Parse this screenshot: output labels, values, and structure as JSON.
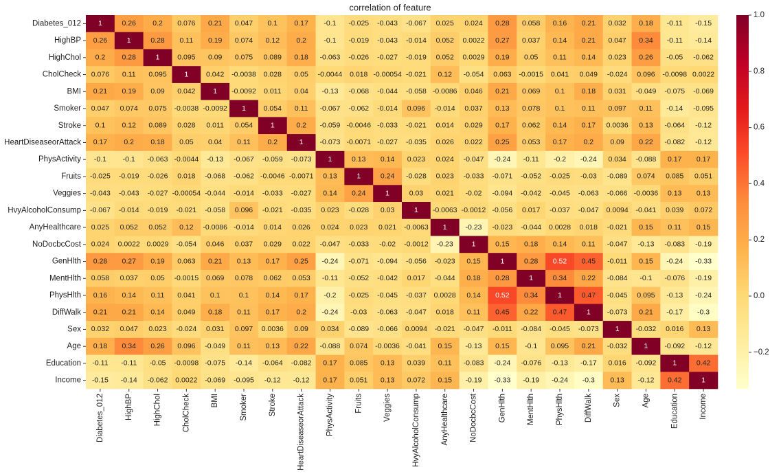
{
  "chart_data": {
    "type": "heatmap",
    "title": "correlation of feature",
    "x_categories": [
      "Diabetes_012",
      "HighBP",
      "HighChol",
      "CholCheck",
      "BMI",
      "Smoker",
      "Stroke",
      "HeartDiseaseorAttack",
      "PhysActivity",
      "Fruits",
      "Veggies",
      "HvyAlcoholConsump",
      "AnyHealthcare",
      "NoDocbcCost",
      "GenHlth",
      "MentHlth",
      "PhysHlth",
      "DiffWalk",
      "Sex",
      "Age",
      "Education",
      "Income"
    ],
    "y_categories": [
      "Diabetes_012",
      "HighBP",
      "HighChol",
      "CholCheck",
      "BMI",
      "Smoker",
      "Stroke",
      "HeartDiseaseorAttack",
      "PhysActivity",
      "Fruits",
      "Veggies",
      "HvyAlcoholConsump",
      "AnyHealthcare",
      "NoDocbcCost",
      "GenHlth",
      "MentHlth",
      "PhysHlth",
      "DiffWalk",
      "Sex",
      "Age",
      "Education",
      "Income"
    ],
    "values": [
      [
        1,
        0.26,
        0.2,
        0.076,
        0.21,
        0.047,
        0.1,
        0.17,
        -0.1,
        -0.025,
        -0.043,
        -0.067,
        0.025,
        0.024,
        0.28,
        0.058,
        0.16,
        0.21,
        0.032,
        0.18,
        -0.11,
        -0.15
      ],
      [
        0.26,
        1,
        0.28,
        0.11,
        0.19,
        0.074,
        0.12,
        0.2,
        -0.1,
        -0.019,
        -0.043,
        -0.014,
        0.052,
        0.0022,
        0.27,
        0.037,
        0.14,
        0.21,
        0.047,
        0.34,
        -0.11,
        -0.14
      ],
      [
        0.2,
        0.28,
        1,
        0.095,
        0.09,
        0.075,
        0.089,
        0.18,
        -0.063,
        -0.026,
        -0.027,
        -0.019,
        0.052,
        0.0029,
        0.19,
        0.05,
        0.11,
        0.14,
        0.023,
        0.26,
        -0.05,
        -0.062
      ],
      [
        0.076,
        0.11,
        0.095,
        1,
        0.042,
        -0.0038,
        0.028,
        0.05,
        -0.0044,
        0.018,
        -0.00054,
        -0.021,
        0.12,
        -0.054,
        0.063,
        -0.0015,
        0.041,
        0.049,
        -0.024,
        0.096,
        -0.0098,
        0.0022
      ],
      [
        0.21,
        0.19,
        0.09,
        0.042,
        1,
        -0.0092,
        0.011,
        0.04,
        -0.13,
        -0.068,
        -0.044,
        -0.058,
        -0.0086,
        0.046,
        0.21,
        0.069,
        0.1,
        0.18,
        0.031,
        -0.049,
        -0.075,
        -0.069
      ],
      [
        0.047,
        0.074,
        0.075,
        -0.0038,
        -0.0092,
        1,
        0.054,
        0.11,
        -0.067,
        -0.062,
        -0.014,
        0.096,
        -0.014,
        0.037,
        0.13,
        0.078,
        0.1,
        0.11,
        0.097,
        0.11,
        -0.14,
        -0.095
      ],
      [
        0.1,
        0.12,
        0.089,
        0.028,
        0.011,
        0.054,
        1,
        0.2,
        -0.059,
        -0.0046,
        -0.033,
        -0.021,
        0.014,
        0.029,
        0.17,
        0.062,
        0.14,
        0.17,
        0.0036,
        0.13,
        -0.064,
        -0.12
      ],
      [
        0.17,
        0.2,
        0.18,
        0.05,
        0.04,
        0.11,
        0.2,
        1,
        -0.073,
        -0.0071,
        -0.027,
        -0.035,
        0.026,
        0.022,
        0.25,
        0.053,
        0.17,
        0.2,
        0.09,
        0.22,
        -0.082,
        -0.12
      ],
      [
        -0.1,
        -0.1,
        -0.063,
        -0.0044,
        -0.13,
        -0.067,
        -0.059,
        -0.073,
        1,
        0.13,
        0.14,
        0.023,
        0.024,
        -0.047,
        -0.24,
        -0.11,
        -0.2,
        -0.24,
        0.034,
        -0.088,
        0.17,
        0.17
      ],
      [
        -0.025,
        -0.019,
        -0.026,
        0.018,
        -0.068,
        -0.062,
        -0.0046,
        -0.0071,
        0.13,
        1,
        0.24,
        -0.028,
        0.023,
        -0.033,
        -0.071,
        -0.052,
        -0.025,
        -0.03,
        -0.089,
        0.074,
        0.085,
        0.051
      ],
      [
        -0.043,
        -0.043,
        -0.027,
        -0.00054,
        -0.044,
        -0.014,
        -0.033,
        -0.027,
        0.14,
        0.24,
        1,
        0.03,
        0.021,
        -0.02,
        -0.094,
        -0.042,
        -0.045,
        -0.063,
        -0.066,
        -0.0036,
        0.13,
        0.13
      ],
      [
        -0.067,
        -0.014,
        -0.019,
        -0.021,
        -0.058,
        0.096,
        -0.021,
        -0.035,
        0.023,
        -0.028,
        0.03,
        1,
        -0.0063,
        -0.0012,
        -0.056,
        0.017,
        -0.037,
        -0.047,
        0.0094,
        -0.041,
        0.039,
        0.072
      ],
      [
        0.025,
        0.052,
        0.052,
        0.12,
        -0.0086,
        -0.014,
        0.014,
        0.026,
        0.024,
        0.023,
        0.021,
        -0.0063,
        1,
        -0.23,
        -0.023,
        -0.044,
        0.0028,
        0.018,
        -0.021,
        0.15,
        0.11,
        0.15
      ],
      [
        0.024,
        0.0022,
        0.0029,
        -0.054,
        0.046,
        0.037,
        0.029,
        0.022,
        -0.047,
        -0.033,
        -0.02,
        -0.0012,
        -0.23,
        1,
        0.15,
        0.18,
        0.14,
        0.11,
        -0.047,
        -0.13,
        -0.083,
        -0.19
      ],
      [
        0.28,
        0.27,
        0.19,
        0.063,
        0.21,
        0.13,
        0.17,
        0.25,
        -0.24,
        -0.071,
        -0.094,
        -0.056,
        -0.023,
        0.15,
        1,
        0.28,
        0.52,
        0.45,
        -0.011,
        0.15,
        -0.24,
        -0.33
      ],
      [
        0.058,
        0.037,
        0.05,
        -0.0015,
        0.069,
        0.078,
        0.062,
        0.053,
        -0.11,
        -0.052,
        -0.042,
        0.017,
        -0.044,
        0.18,
        0.28,
        1,
        0.34,
        0.22,
        -0.084,
        -0.1,
        -0.076,
        -0.19
      ],
      [
        0.16,
        0.14,
        0.11,
        0.041,
        0.1,
        0.1,
        0.14,
        0.17,
        -0.2,
        -0.025,
        -0.045,
        -0.037,
        0.0028,
        0.14,
        0.52,
        0.34,
        1,
        0.47,
        -0.045,
        0.095,
        -0.13,
        -0.24
      ],
      [
        0.21,
        0.21,
        0.14,
        0.049,
        0.18,
        0.11,
        0.17,
        0.2,
        -0.24,
        -0.03,
        -0.063,
        -0.047,
        0.018,
        0.11,
        0.45,
        0.22,
        0.47,
        1,
        -0.073,
        0.21,
        -0.17,
        -0.3
      ],
      [
        0.032,
        0.047,
        0.023,
        -0.024,
        0.031,
        0.097,
        0.0036,
        0.09,
        0.034,
        -0.089,
        -0.066,
        0.0094,
        -0.021,
        -0.047,
        -0.011,
        -0.084,
        -0.045,
        -0.073,
        1,
        -0.032,
        0.016,
        0.13
      ],
      [
        0.18,
        0.34,
        0.26,
        0.096,
        -0.049,
        0.11,
        0.13,
        0.22,
        -0.088,
        0.074,
        -0.0036,
        -0.041,
        0.15,
        -0.13,
        0.15,
        -0.1,
        0.095,
        0.21,
        -0.032,
        1,
        -0.092,
        -0.12
      ],
      [
        -0.11,
        -0.11,
        -0.05,
        -0.0098,
        -0.075,
        -0.14,
        -0.064,
        -0.082,
        0.17,
        0.085,
        0.13,
        0.039,
        0.11,
        -0.083,
        -0.24,
        -0.076,
        -0.13,
        -0.17,
        0.016,
        -0.092,
        1,
        0.42
      ],
      [
        -0.15,
        -0.14,
        -0.062,
        0.0022,
        -0.069,
        -0.095,
        -0.12,
        -0.12,
        0.17,
        0.051,
        0.13,
        0.072,
        0.15,
        -0.19,
        -0.33,
        -0.19,
        -0.24,
        -0.3,
        0.13,
        -0.12,
        0.42,
        1
      ]
    ],
    "colormap": "YlOrRd",
    "clim": [
      -0.33,
      1
    ],
    "cticks": [
      {
        "value": -0.2,
        "label": "−0.2"
      },
      {
        "value": 0,
        "label": "0.0"
      },
      0.2,
      0.4,
      0.6,
      0.8,
      {
        "value": 1,
        "label": "1.0"
      }
    ]
  }
}
